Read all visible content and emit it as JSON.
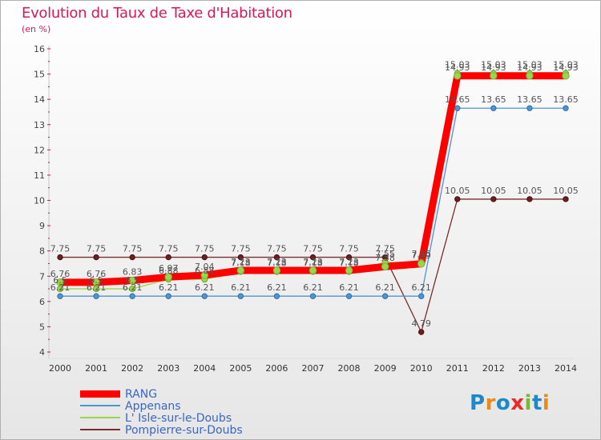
{
  "title": "Evolution du Taux de Taxe d'Habitation",
  "subtitle": "(en %)",
  "logo": "Proxiti",
  "chart_data": {
    "type": "line",
    "title": "Evolution du Taux de Taxe d'Habitation",
    "ylabel": "(en %)",
    "xlabel": "",
    "ylim": [
      4,
      16
    ],
    "yticks": [
      4,
      5,
      6,
      7,
      8,
      9,
      10,
      11,
      12,
      13,
      14,
      15,
      16
    ],
    "grid": false,
    "legend_position": "bottom-left",
    "x": [
      "2000",
      "2001",
      "2002",
      "2003",
      "2004",
      "2005",
      "2006",
      "2007",
      "2008",
      "2009",
      "2010",
      "2011",
      "2012",
      "2013",
      "2014"
    ],
    "series": [
      {
        "name": "RANG",
        "color": "#ff0000",
        "values": [
          6.76,
          6.76,
          6.83,
          6.97,
          7.04,
          7.23,
          7.23,
          7.23,
          7.23,
          7.38,
          7.49,
          14.93,
          14.93,
          14.93,
          14.93
        ],
        "labels": [
          "6.76",
          "6.76",
          "6.83",
          "6.97",
          "7.04",
          "7.23",
          "7.23",
          "7.23",
          "7.23",
          "7.38",
          "7.49",
          "14.93",
          "14.93",
          "14.93",
          "14.93"
        ]
      },
      {
        "name": "Appenans",
        "color": "#4f93d1",
        "values": [
          6.21,
          6.21,
          6.21,
          6.21,
          6.21,
          6.21,
          6.21,
          6.21,
          6.21,
          6.21,
          6.21,
          13.65,
          13.65,
          13.65,
          13.65
        ],
        "labels": [
          "6.21",
          "6.21",
          "6.21",
          "6.21",
          "6.21",
          "6.21",
          "6.21",
          "6.21",
          "6.21",
          "6.21",
          "6.21",
          "13.65",
          "13.65",
          "13.65",
          "13.65"
        ]
      },
      {
        "name": "L' Isle-sur-le-Doubs",
        "color": "#99d64c",
        "values": [
          6.5,
          6.5,
          6.5,
          6.88,
          6.88,
          7.18,
          7.18,
          7.18,
          7.18,
          7.55,
          7.55,
          15.03,
          15.03,
          15.03,
          15.03
        ],
        "labels": [
          "6.5",
          "6.5",
          "6.5",
          "6.88",
          "6.88",
          "7.18",
          "7.18",
          "7.18",
          "7.18",
          "7.55",
          "7.55",
          "15.03",
          "15.03",
          "15.03",
          "15.03"
        ]
      },
      {
        "name": "Pompierre-sur-Doubs",
        "color": "#7b2d2d",
        "values": [
          7.75,
          7.75,
          7.75,
          7.75,
          7.75,
          7.75,
          7.75,
          7.75,
          7.75,
          7.75,
          4.79,
          10.05,
          10.05,
          10.05,
          10.05
        ],
        "labels": [
          "7.75",
          "7.75",
          "7.75",
          "7.75",
          "7.75",
          "7.75",
          "7.75",
          "7.75",
          "7.75",
          "7.75",
          "4.79",
          "10.05",
          "10.05",
          "10.05",
          "10.05"
        ]
      }
    ]
  }
}
